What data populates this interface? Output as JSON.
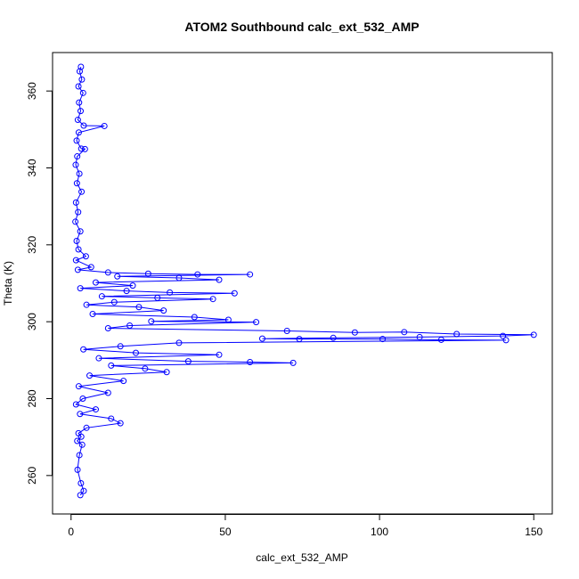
{
  "chart_data": {
    "type": "scatter",
    "title": "ATOM2 Southbound calc_ext_532_AMP",
    "xlabel": "calc_ext_532_AMP",
    "ylabel": "Theta (K)",
    "xlim": [
      -6,
      156
    ],
    "ylim": [
      250,
      370
    ],
    "x_ticks": [
      0,
      50,
      100,
      150
    ],
    "y_ticks": [
      260,
      280,
      300,
      320,
      340,
      360
    ],
    "x_tick_labels": [
      "0",
      "50",
      "100",
      "150"
    ],
    "y_tick_labels": [
      "260",
      "280",
      "300",
      "320",
      "340",
      "360"
    ],
    "grid": false,
    "legend": "none",
    "marker": "open-circle",
    "connected": true,
    "color": "#0000ff",
    "series": [
      {
        "points": [
          [
            3.2,
            366.3
          ],
          [
            2.8,
            365.1
          ],
          [
            3.5,
            363.0
          ],
          [
            2.4,
            361.2
          ],
          [
            3.9,
            359.5
          ],
          [
            2.6,
            357.0
          ],
          [
            3.1,
            354.8
          ],
          [
            2.2,
            352.5
          ],
          [
            4.1,
            351.0
          ],
          [
            10.8,
            350.9
          ],
          [
            2.5,
            349.2
          ],
          [
            1.8,
            347.1
          ],
          [
            3.3,
            345.0
          ],
          [
            4.5,
            344.9
          ],
          [
            2.0,
            343.0
          ],
          [
            1.5,
            340.8
          ],
          [
            2.7,
            338.5
          ],
          [
            1.9,
            336.0
          ],
          [
            3.4,
            333.8
          ],
          [
            1.6,
            331.0
          ],
          [
            2.3,
            328.5
          ],
          [
            1.4,
            326.0
          ],
          [
            3.0,
            323.5
          ],
          [
            1.8,
            321.0
          ],
          [
            2.4,
            318.8
          ],
          [
            4.8,
            317.0
          ],
          [
            1.6,
            316.0
          ],
          [
            6.5,
            314.2
          ],
          [
            2.2,
            313.5
          ],
          [
            12.0,
            312.8
          ],
          [
            25.0,
            312.5
          ],
          [
            41.0,
            312.3
          ],
          [
            58.0,
            312.3
          ],
          [
            15.0,
            311.8
          ],
          [
            35.0,
            311.4
          ],
          [
            48.0,
            310.9
          ],
          [
            8.0,
            310.2
          ],
          [
            20.0,
            309.4
          ],
          [
            3.0,
            308.7
          ],
          [
            18.0,
            308.0
          ],
          [
            32.0,
            307.6
          ],
          [
            53.0,
            307.4
          ],
          [
            10.0,
            306.6
          ],
          [
            28.0,
            306.2
          ],
          [
            46.0,
            305.9
          ],
          [
            14.0,
            305.1
          ],
          [
            5.0,
            304.4
          ],
          [
            22.0,
            303.8
          ],
          [
            30.0,
            302.9
          ],
          [
            7.0,
            302.0
          ],
          [
            40.0,
            301.2
          ],
          [
            51.0,
            300.5
          ],
          [
            26.0,
            300.1
          ],
          [
            60.0,
            299.9
          ],
          [
            19.0,
            299.0
          ],
          [
            12.0,
            298.3
          ],
          [
            70.0,
            297.6
          ],
          [
            92.0,
            297.2
          ],
          [
            108.0,
            297.3
          ],
          [
            125.0,
            296.8
          ],
          [
            150.0,
            296.6
          ],
          [
            140.0,
            296.3
          ],
          [
            113.0,
            296.0
          ],
          [
            85.0,
            295.8
          ],
          [
            62.0,
            295.6
          ],
          [
            74.0,
            295.5
          ],
          [
            101.0,
            295.5
          ],
          [
            120.0,
            295.3
          ],
          [
            141.0,
            295.2
          ],
          [
            35.0,
            294.5
          ],
          [
            16.0,
            293.6
          ],
          [
            4.0,
            292.8
          ],
          [
            21.0,
            291.9
          ],
          [
            48.0,
            291.4
          ],
          [
            9.0,
            290.5
          ],
          [
            38.0,
            289.7
          ],
          [
            58.0,
            289.5
          ],
          [
            72.0,
            289.3
          ],
          [
            13.0,
            288.6
          ],
          [
            24.0,
            287.8
          ],
          [
            31.0,
            286.9
          ],
          [
            6.0,
            286.0
          ],
          [
            17.0,
            284.6
          ],
          [
            2.5,
            283.2
          ],
          [
            12.0,
            281.5
          ],
          [
            3.8,
            280.0
          ],
          [
            1.6,
            278.5
          ],
          [
            8.0,
            277.2
          ],
          [
            2.9,
            276.0
          ],
          [
            13.0,
            274.8
          ],
          [
            16.0,
            273.6
          ],
          [
            5.0,
            272.4
          ],
          [
            2.4,
            271.0
          ],
          [
            3.3,
            270.1
          ],
          [
            2.0,
            269.0
          ],
          [
            3.6,
            268.0
          ],
          [
            2.7,
            265.3
          ],
          [
            2.1,
            261.5
          ],
          [
            3.2,
            258.0
          ],
          [
            4.1,
            256.0
          ],
          [
            3.0,
            254.9
          ]
        ]
      }
    ]
  }
}
